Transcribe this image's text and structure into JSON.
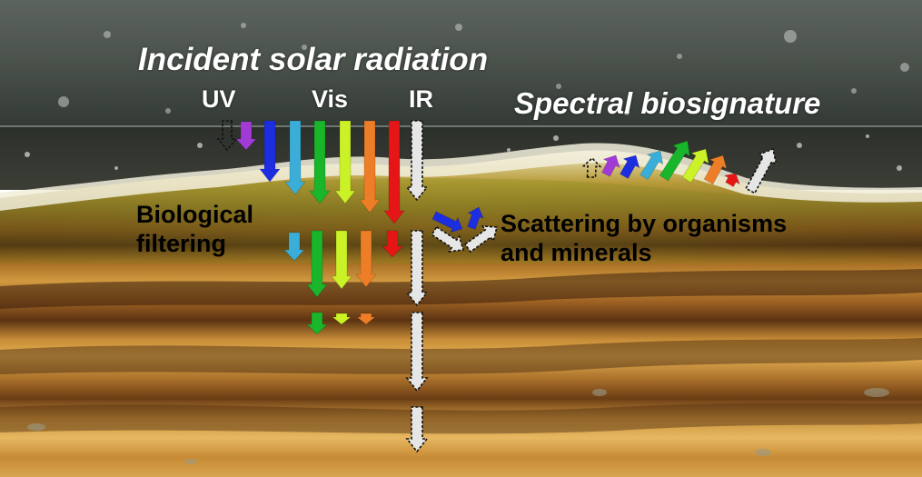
{
  "figure": {
    "title": "Incident solar radiation",
    "spectral_title": "Spectral biosignature",
    "bands": {
      "uv": "UV",
      "vis": "Vis",
      "ir": "IR"
    },
    "biological_filtering": [
      "Biological",
      "filtering"
    ],
    "scattering": [
      "Scattering by organisms",
      "and minerals"
    ]
  },
  "colors": {
    "uv": "#a23bd6",
    "blue": "#1d2de0",
    "cyan": "#3aaed8",
    "green": "#19b52a",
    "yellow_green": "#cbf227",
    "orange": "#ee7d27",
    "red": "#e61616",
    "ir_fill": "#e6e6e6",
    "outline": "#111111"
  }
}
